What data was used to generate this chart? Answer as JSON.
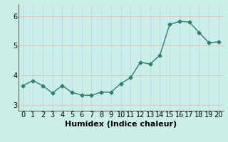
{
  "x": [
    0,
    1,
    2,
    3,
    4,
    5,
    6,
    7,
    8,
    9,
    10,
    11,
    12,
    13,
    14,
    15,
    16,
    17,
    18,
    19,
    20
  ],
  "y": [
    3.65,
    3.82,
    3.65,
    3.4,
    3.65,
    3.42,
    3.33,
    3.32,
    3.43,
    3.43,
    3.72,
    3.92,
    4.44,
    4.38,
    4.68,
    5.72,
    5.82,
    5.8,
    5.45,
    5.1,
    5.13
  ],
  "line_color": "#2e7d6e",
  "marker": "D",
  "marker_size": 2.5,
  "bg_color": "#cceee8",
  "grid_color_v": "#b8ddd8",
  "grid_color_h": "#e8b8b0",
  "xlabel": "Humidex (Indice chaleur)",
  "ylim": [
    2.8,
    6.4
  ],
  "xlim": [
    -0.5,
    20.5
  ],
  "yticks": [
    3,
    4,
    5,
    6
  ],
  "xticks": [
    0,
    1,
    2,
    3,
    4,
    5,
    6,
    7,
    8,
    9,
    10,
    11,
    12,
    13,
    14,
    15,
    16,
    17,
    18,
    19,
    20
  ],
  "linewidth": 1.0,
  "xlabel_fontsize": 8,
  "tick_fontsize": 7,
  "spine_color": "#666666"
}
